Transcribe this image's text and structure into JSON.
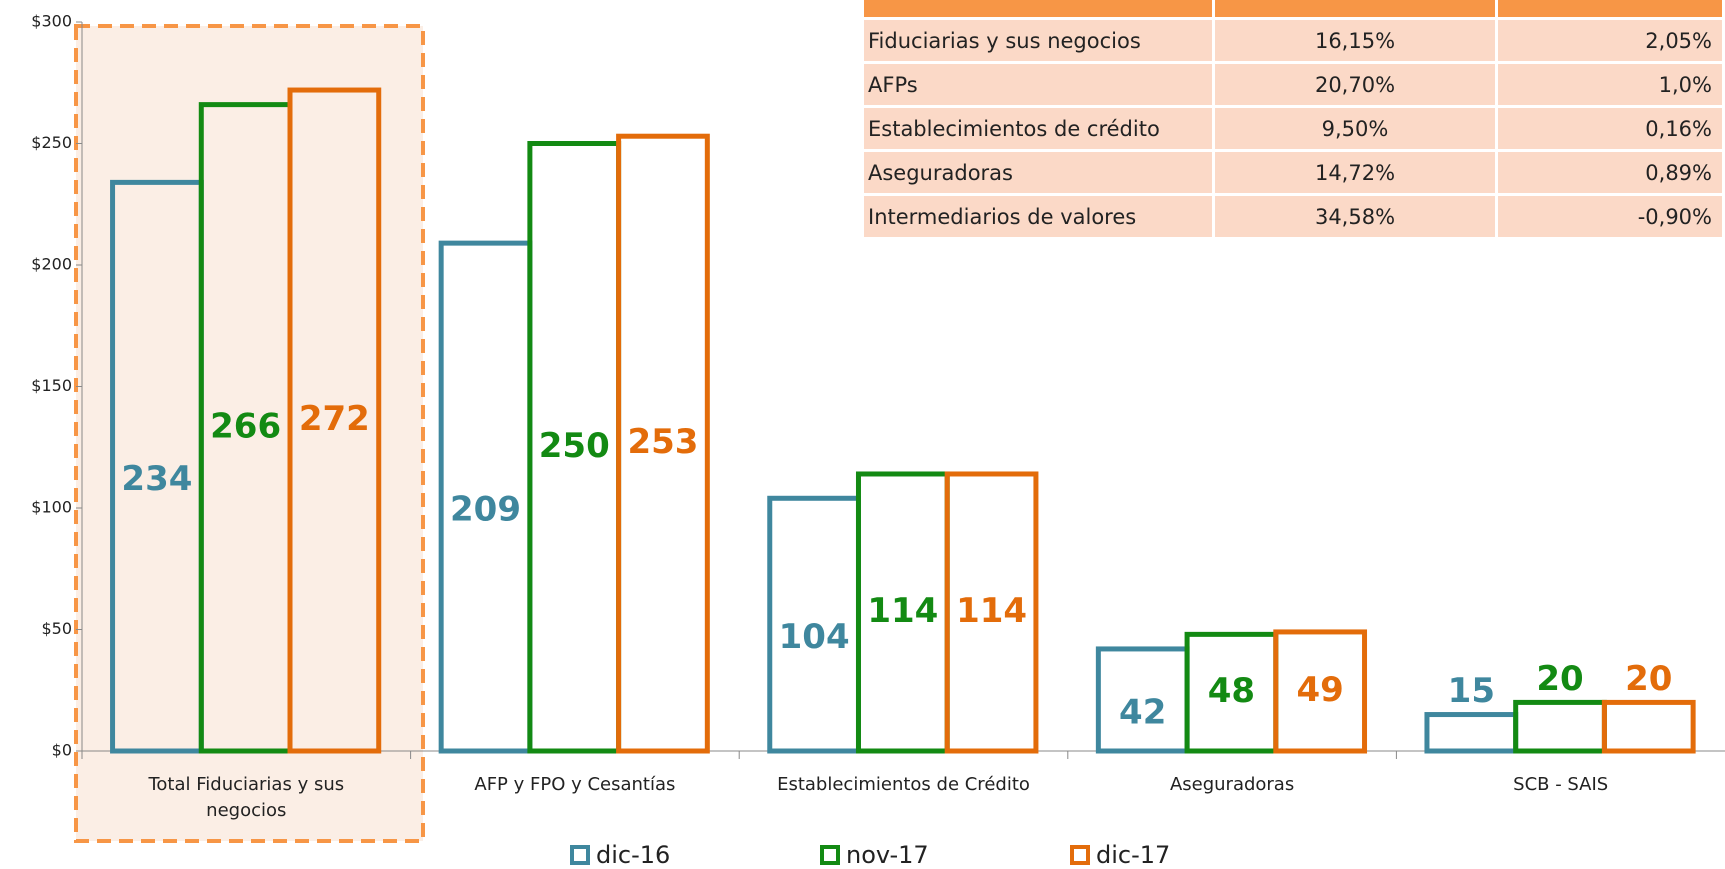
{
  "chart_data": {
    "type": "bar",
    "categories": [
      "Total Fiduciarias y sus negocios",
      "AFP y FPO y Cesantías",
      "Establecimientos de Crédito",
      "Aseguradoras",
      "SCB - SAIS"
    ],
    "series": [
      {
        "name": "dic-16",
        "color": "#3f879e",
        "values": [
          234,
          209,
          104,
          42,
          15
        ]
      },
      {
        "name": "nov-17",
        "color": "#138a13",
        "values": [
          266,
          250,
          114,
          48,
          20
        ]
      },
      {
        "name": "dic-17",
        "color": "#e36c0a",
        "values": [
          272,
          253,
          114,
          49,
          20
        ]
      }
    ],
    "ylim": [
      0,
      300
    ],
    "yticks": [
      {
        "value": 0,
        "label": "$0"
      },
      {
        "value": 50,
        "label": "$50"
      },
      {
        "value": 100,
        "label": "$100"
      },
      {
        "value": 150,
        "label": "$150"
      },
      {
        "value": 200,
        "label": "$200"
      },
      {
        "value": 250,
        "label": "$250"
      },
      {
        "value": 300,
        "label": "$300"
      }
    ],
    "grid": false
  },
  "table": {
    "rows": [
      [
        "Fiduciarias y sus negocios",
        "16,15%",
        "2,05%"
      ],
      [
        "AFPs",
        "20,70%",
        "1,0%"
      ],
      [
        "Establecimientos de crédito",
        "9,50%",
        "0,16%"
      ],
      [
        "Aseguradoras",
        "14,72%",
        "0,89%"
      ],
      [
        "Intermediarios de valores",
        "34,58%",
        "-0,90%"
      ]
    ]
  }
}
